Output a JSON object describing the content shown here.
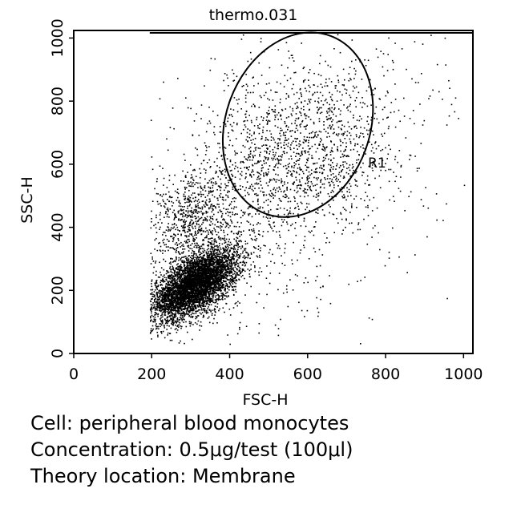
{
  "chart_data": {
    "type": "scatter",
    "title": "thermo.031",
    "xlabel": "FSC-H",
    "ylabel": "SSC-H",
    "xlim": [
      0,
      1024
    ],
    "ylim": [
      0,
      1024
    ],
    "xticks": [
      "0",
      "200",
      "400",
      "600",
      "800",
      "1000"
    ],
    "yticks": [
      "0",
      "200",
      "400",
      "600",
      "800",
      "1000"
    ],
    "grid": false,
    "point_color": "#000000",
    "populations": [
      {
        "center": [
          310,
          220
        ],
        "spread": [
          55,
          55
        ],
        "corr": 0.6,
        "count": 5200
      },
      {
        "center": [
          300,
          420
        ],
        "spread": [
          55,
          80
        ],
        "corr": 0.2,
        "count": 700
      },
      {
        "center": [
          580,
          640
        ],
        "spread": [
          120,
          140
        ],
        "corr": 0.3,
        "count": 1300
      },
      {
        "center": [
          500,
          500
        ],
        "spread": [
          220,
          250
        ],
        "corr": 0.4,
        "count": 900
      }
    ],
    "gate": {
      "name": "R1",
      "shape": "ellipse",
      "center": [
        575,
        725
      ],
      "radii": [
        185,
        300
      ],
      "rotation_deg": 20
    }
  },
  "caption": {
    "cell": "Cell: peripheral blood monocytes",
    "concentration": "Concentration: 0.5μg/test (100μl)",
    "location": "Theory location: Membrane"
  }
}
